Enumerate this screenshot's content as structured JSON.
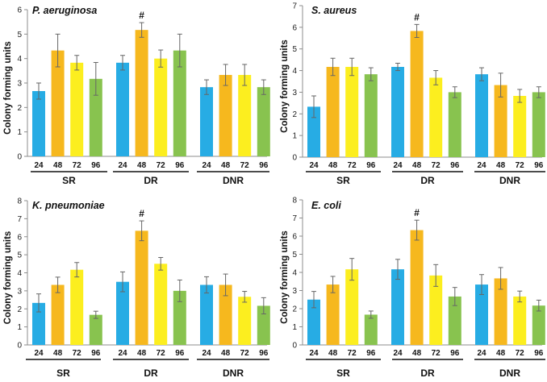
{
  "colors": {
    "24": "#27ace4",
    "48": "#f6b81e",
    "72": "#fcee1f",
    "96": "#88c34f",
    "axis": "#8c8c8c",
    "error": "#666666"
  },
  "chart_data": [
    {
      "type": "bar",
      "title": "P. aeruginosa",
      "ylabel": "Colony forming units",
      "ylim": [
        0,
        6
      ],
      "yticks": [
        "0",
        "1",
        "2",
        "3",
        "4",
        "5",
        "6"
      ],
      "groups": [
        {
          "label": "SR",
          "categories": [
            "24",
            "48",
            "72",
            "96"
          ],
          "values": [
            2.67,
            4.33,
            3.83,
            3.17
          ],
          "errors": [
            0.33,
            0.67,
            0.3,
            0.67
          ],
          "marks": [
            "",
            "",
            "",
            ""
          ]
        },
        {
          "label": "DR",
          "categories": [
            "24",
            "48",
            "72",
            "96"
          ],
          "values": [
            3.83,
            5.17,
            4.0,
            4.33
          ],
          "errors": [
            0.3,
            0.3,
            0.35,
            0.67
          ],
          "marks": [
            "",
            "#",
            "",
            ""
          ]
        },
        {
          "label": "DNR",
          "categories": [
            "24",
            "48",
            "72",
            "96"
          ],
          "values": [
            2.83,
            3.33,
            3.33,
            2.83
          ],
          "errors": [
            0.3,
            0.43,
            0.43,
            0.3
          ],
          "marks": [
            "",
            "",
            "",
            ""
          ]
        }
      ]
    },
    {
      "type": "bar",
      "title": "S. aureus",
      "ylabel": "Colony forming units",
      "ylim": [
        0,
        7
      ],
      "yticks": [
        "0",
        "1",
        "2",
        "3",
        "4",
        "5",
        "6",
        "7"
      ],
      "groups": [
        {
          "label": "SR",
          "categories": [
            "24",
            "48",
            "72",
            "96"
          ],
          "values": [
            2.33,
            4.17,
            4.17,
            3.83
          ],
          "errors": [
            0.5,
            0.4,
            0.4,
            0.3
          ],
          "marks": [
            "",
            "",
            "",
            ""
          ]
        },
        {
          "label": "DR",
          "categories": [
            "24",
            "48",
            "72",
            "96"
          ],
          "values": [
            4.17,
            5.83,
            3.67,
            3.0
          ],
          "errors": [
            0.17,
            0.3,
            0.33,
            0.25
          ],
          "marks": [
            "",
            "#",
            "",
            ""
          ]
        },
        {
          "label": "DNR",
          "categories": [
            "24",
            "48",
            "72",
            "96"
          ],
          "values": [
            3.83,
            3.33,
            2.83,
            3.0
          ],
          "errors": [
            0.3,
            0.55,
            0.3,
            0.25
          ],
          "marks": [
            "",
            "",
            "",
            ""
          ]
        }
      ]
    },
    {
      "type": "bar",
      "title": "K. pneumoniae",
      "ylabel": "Colony forming units",
      "ylim": [
        0,
        8
      ],
      "yticks": [
        "0",
        "1",
        "2",
        "3",
        "4",
        "5",
        "6",
        "7",
        "8"
      ],
      "groups": [
        {
          "label": "SR",
          "categories": [
            "24",
            "48",
            "72",
            "96"
          ],
          "values": [
            2.33,
            3.33,
            4.17,
            1.67
          ],
          "errors": [
            0.5,
            0.43,
            0.4,
            0.2
          ],
          "marks": [
            "",
            "",
            "",
            ""
          ]
        },
        {
          "label": "DR",
          "categories": [
            "24",
            "48",
            "72",
            "96"
          ],
          "values": [
            3.5,
            6.33,
            4.5,
            3.0
          ],
          "errors": [
            0.55,
            0.55,
            0.35,
            0.6
          ],
          "marks": [
            "",
            "#",
            "",
            ""
          ]
        },
        {
          "label": "DNR",
          "categories": [
            "24",
            "48",
            "72",
            "96"
          ],
          "values": [
            3.33,
            3.33,
            2.67,
            2.17
          ],
          "errors": [
            0.45,
            0.6,
            0.3,
            0.45
          ],
          "marks": [
            "",
            "",
            "",
            ""
          ]
        }
      ]
    },
    {
      "type": "bar",
      "title": "E. coli",
      "ylabel": "Colony forming units",
      "ylim": [
        0,
        8
      ],
      "yticks": [
        "0",
        "1",
        "2",
        "3",
        "4",
        "5",
        "6",
        "7",
        "8"
      ],
      "groups": [
        {
          "label": "SR",
          "categories": [
            "24",
            "48",
            "72",
            "96"
          ],
          "values": [
            2.5,
            3.33,
            4.17,
            1.67
          ],
          "errors": [
            0.45,
            0.45,
            0.6,
            0.2
          ],
          "marks": [
            "",
            "",
            "",
            ""
          ]
        },
        {
          "label": "DR",
          "categories": [
            "24",
            "48",
            "72",
            "96"
          ],
          "values": [
            4.17,
            6.33,
            3.83,
            2.67
          ],
          "errors": [
            0.55,
            0.55,
            0.6,
            0.5
          ],
          "marks": [
            "",
            "#",
            "",
            ""
          ]
        },
        {
          "label": "DNR",
          "categories": [
            "24",
            "48",
            "72",
            "96"
          ],
          "values": [
            3.33,
            3.67,
            2.67,
            2.17
          ],
          "errors": [
            0.55,
            0.6,
            0.3,
            0.3
          ],
          "marks": [
            "",
            "",
            "",
            ""
          ]
        }
      ]
    }
  ]
}
